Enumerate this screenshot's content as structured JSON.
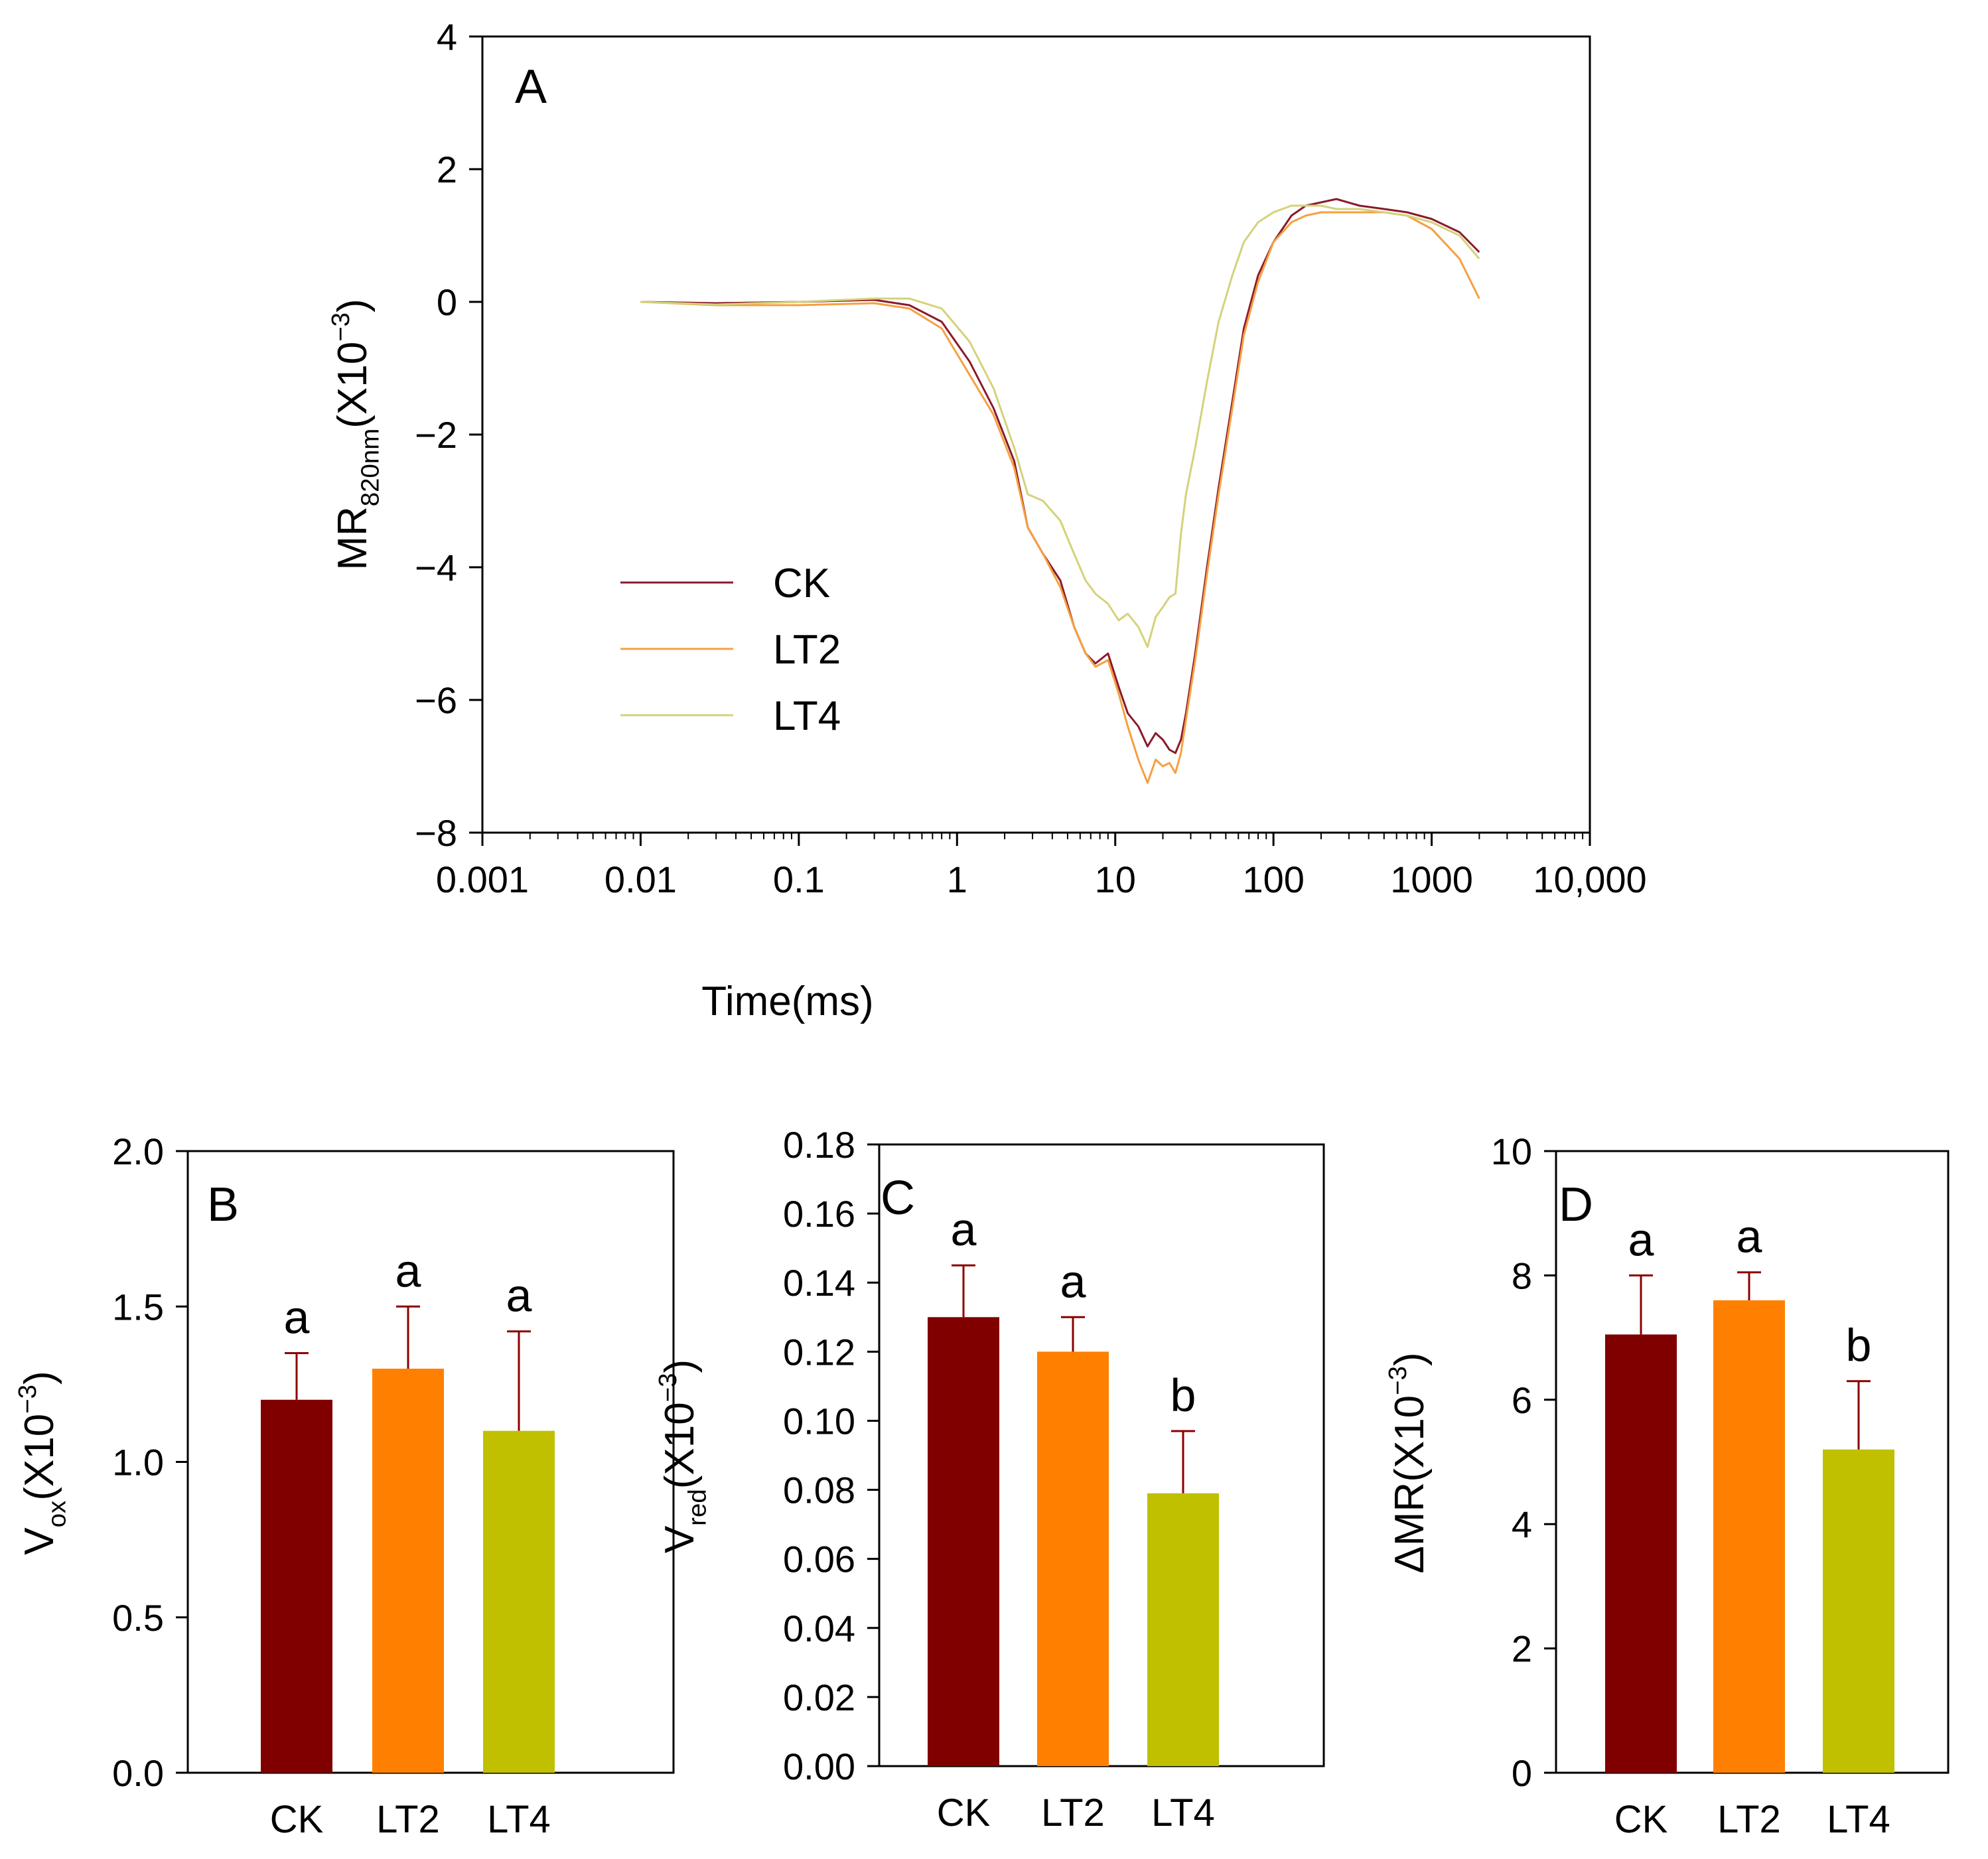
{
  "chart_data": [
    {
      "panel": "A",
      "type": "line",
      "xscale": "log",
      "xlabel": "Time(ms)",
      "ylabel": {
        "base": "MR",
        "sub": "820nm",
        "unit": "(X10",
        "exp": "−3",
        "close": ")"
      },
      "xlim": [
        0.001,
        10000
      ],
      "ylim": [
        -8,
        4
      ],
      "xticks": [
        {
          "value": 0.001,
          "label": "0.001"
        },
        {
          "value": 0.01,
          "label": "0.01"
        },
        {
          "value": 0.1,
          "label": "0.1"
        },
        {
          "value": 1,
          "label": "1"
        },
        {
          "value": 10,
          "label": "10"
        },
        {
          "value": 100,
          "label": "100"
        },
        {
          "value": 1000,
          "label": "1000"
        },
        {
          "value": 10000,
          "label": "10,000"
        }
      ],
      "yticks": [
        {
          "value": 4,
          "label": "4"
        },
        {
          "value": 2,
          "label": "2"
        },
        {
          "value": 0,
          "label": "0"
        },
        {
          "value": -2,
          "label": "−2"
        },
        {
          "value": -4,
          "label": "−4"
        },
        {
          "value": -6,
          "label": "−6"
        },
        {
          "value": -8,
          "label": "−8"
        }
      ],
      "legend_position": "lower-left",
      "series": [
        {
          "name": "CK",
          "color": "#8B1A2A",
          "points": [
            [
              0.01,
              0
            ],
            [
              0.03,
              -0.02
            ],
            [
              0.1,
              0
            ],
            [
              0.3,
              0.03
            ],
            [
              0.5,
              -0.05
            ],
            [
              0.8,
              -0.3
            ],
            [
              1.2,
              -0.9
            ],
            [
              1.7,
              -1.6
            ],
            [
              2.3,
              -2.4
            ],
            [
              2.8,
              -3.4
            ],
            [
              3.5,
              -3.8
            ],
            [
              4.5,
              -4.2
            ],
            [
              5.5,
              -4.9
            ],
            [
              6.5,
              -5.3
            ],
            [
              7.5,
              -5.45
            ],
            [
              9,
              -5.3
            ],
            [
              10.5,
              -5.8
            ],
            [
              12,
              -6.2
            ],
            [
              14,
              -6.4
            ],
            [
              16,
              -6.7
            ],
            [
              18,
              -6.5
            ],
            [
              20,
              -6.6
            ],
            [
              22,
              -6.75
            ],
            [
              24,
              -6.8
            ],
            [
              26,
              -6.6
            ],
            [
              28,
              -6.2
            ],
            [
              32,
              -5.3
            ],
            [
              38,
              -4.0
            ],
            [
              45,
              -2.8
            ],
            [
              55,
              -1.5
            ],
            [
              65,
              -0.4
            ],
            [
              80,
              0.4
            ],
            [
              100,
              0.9
            ],
            [
              130,
              1.3
            ],
            [
              160,
              1.45
            ],
            [
              200,
              1.5
            ],
            [
              250,
              1.55
            ],
            [
              350,
              1.45
            ],
            [
              500,
              1.4
            ],
            [
              700,
              1.35
            ],
            [
              1000,
              1.25
            ],
            [
              1500,
              1.05
            ],
            [
              2000,
              0.75
            ]
          ]
        },
        {
          "name": "LT2",
          "color": "#F5A040",
          "points": [
            [
              0.01,
              0
            ],
            [
              0.03,
              -0.05
            ],
            [
              0.1,
              -0.05
            ],
            [
              0.3,
              -0.02
            ],
            [
              0.5,
              -0.1
            ],
            [
              0.8,
              -0.4
            ],
            [
              1.2,
              -1.1
            ],
            [
              1.7,
              -1.7
            ],
            [
              2.3,
              -2.5
            ],
            [
              2.8,
              -3.4
            ],
            [
              3.5,
              -3.8
            ],
            [
              4.5,
              -4.3
            ],
            [
              5.5,
              -4.9
            ],
            [
              6.5,
              -5.3
            ],
            [
              7.5,
              -5.5
            ],
            [
              9,
              -5.4
            ],
            [
              10.5,
              -5.9
            ],
            [
              12,
              -6.4
            ],
            [
              14,
              -6.9
            ],
            [
              16,
              -7.25
            ],
            [
              18,
              -6.9
            ],
            [
              20,
              -7.0
            ],
            [
              22,
              -6.95
            ],
            [
              24,
              -7.1
            ],
            [
              26,
              -6.8
            ],
            [
              28,
              -6.3
            ],
            [
              32,
              -5.4
            ],
            [
              38,
              -4.1
            ],
            [
              45,
              -2.9
            ],
            [
              55,
              -1.6
            ],
            [
              65,
              -0.5
            ],
            [
              80,
              0.3
            ],
            [
              100,
              0.9
            ],
            [
              130,
              1.2
            ],
            [
              160,
              1.3
            ],
            [
              200,
              1.35
            ],
            [
              250,
              1.35
            ],
            [
              350,
              1.35
            ],
            [
              500,
              1.35
            ],
            [
              700,
              1.3
            ],
            [
              1000,
              1.1
            ],
            [
              1500,
              0.65
            ],
            [
              2000,
              0.05
            ]
          ]
        },
        {
          "name": "LT4",
          "color": "#D4D27A",
          "points": [
            [
              0.01,
              0
            ],
            [
              0.03,
              -0.04
            ],
            [
              0.1,
              0
            ],
            [
              0.3,
              0.05
            ],
            [
              0.5,
              0.05
            ],
            [
              0.8,
              -0.1
            ],
            [
              1.2,
              -0.6
            ],
            [
              1.7,
              -1.3
            ],
            [
              2.3,
              -2.2
            ],
            [
              2.8,
              -2.9
            ],
            [
              3.5,
              -3.0
            ],
            [
              4.5,
              -3.3
            ],
            [
              5.5,
              -3.8
            ],
            [
              6.5,
              -4.2
            ],
            [
              7.5,
              -4.4
            ],
            [
              9,
              -4.55
            ],
            [
              10.5,
              -4.8
            ],
            [
              12,
              -4.7
            ],
            [
              14,
              -4.9
            ],
            [
              16,
              -5.2
            ],
            [
              18,
              -4.75
            ],
            [
              20,
              -4.6
            ],
            [
              22,
              -4.45
            ],
            [
              24,
              -4.4
            ],
            [
              26,
              -3.5
            ],
            [
              28,
              -2.9
            ],
            [
              32,
              -2.2
            ],
            [
              38,
              -1.2
            ],
            [
              45,
              -0.3
            ],
            [
              55,
              0.4
            ],
            [
              65,
              0.9
            ],
            [
              80,
              1.2
            ],
            [
              100,
              1.35
            ],
            [
              130,
              1.45
            ],
            [
              160,
              1.45
            ],
            [
              200,
              1.45
            ],
            [
              250,
              1.4
            ],
            [
              350,
              1.4
            ],
            [
              500,
              1.35
            ],
            [
              700,
              1.3
            ],
            [
              1000,
              1.2
            ],
            [
              1500,
              1.0
            ],
            [
              2000,
              0.65
            ]
          ]
        }
      ]
    },
    {
      "panel": "B",
      "type": "bar",
      "categories": [
        "CK",
        "LT2",
        "LT4"
      ],
      "values": [
        1.2,
        1.3,
        1.1
      ],
      "errors": [
        0.15,
        0.2,
        0.32
      ],
      "letters": [
        "a",
        "a",
        "a"
      ],
      "colors": [
        "#800000",
        "#FF8000",
        "#C0C000"
      ],
      "ylabel": {
        "base": "V",
        "sub": "ox",
        "unit": "(X10",
        "exp": "−3",
        "close": ")"
      },
      "ylim": [
        0,
        2.0
      ],
      "yticks": [
        {
          "value": 2.0,
          "label": "2.0"
        },
        {
          "value": 1.5,
          "label": "1.5"
        },
        {
          "value": 1.0,
          "label": "1.0"
        },
        {
          "value": 0.5,
          "label": "0.5"
        },
        {
          "value": 0.0,
          "label": "0.0"
        }
      ]
    },
    {
      "panel": "C",
      "type": "bar",
      "categories": [
        "CK",
        "LT2",
        "LT4"
      ],
      "values": [
        0.13,
        0.12,
        0.079
      ],
      "errors": [
        0.015,
        0.01,
        0.018
      ],
      "letters": [
        "a",
        "a",
        "b"
      ],
      "colors": [
        "#800000",
        "#FF8000",
        "#C0C000"
      ],
      "ylabel": {
        "base": "V",
        "sub": "red",
        "unit": "(X10",
        "exp": "−3",
        "close": ")"
      },
      "ylim": [
        0,
        0.18
      ],
      "yticks": [
        {
          "value": 0.18,
          "label": "0.18"
        },
        {
          "value": 0.16,
          "label": "0.16"
        },
        {
          "value": 0.14,
          "label": "0.14"
        },
        {
          "value": 0.12,
          "label": "0.12"
        },
        {
          "value": 0.1,
          "label": "0.10"
        },
        {
          "value": 0.08,
          "label": "0.08"
        },
        {
          "value": 0.06,
          "label": "0.06"
        },
        {
          "value": 0.04,
          "label": "0.04"
        },
        {
          "value": 0.02,
          "label": "0.02"
        },
        {
          "value": 0.0,
          "label": "0.00"
        }
      ]
    },
    {
      "panel": "D",
      "type": "bar",
      "categories": [
        "CK",
        "LT2",
        "LT4"
      ],
      "values": [
        7.05,
        7.6,
        5.2
      ],
      "errors": [
        0.95,
        0.45,
        1.1
      ],
      "letters": [
        "a",
        "a",
        "b"
      ],
      "colors": [
        "#800000",
        "#FF8000",
        "#C0C000"
      ],
      "ylabel": {
        "base": "ΔMR",
        "sub": "",
        "unit": "(X10",
        "exp": "−3",
        "close": ")"
      },
      "ylim": [
        0,
        10
      ],
      "yticks": [
        {
          "value": 10,
          "label": "10"
        },
        {
          "value": 8,
          "label": "8"
        },
        {
          "value": 6,
          "label": "6"
        },
        {
          "value": 4,
          "label": "4"
        },
        {
          "value": 2,
          "label": "2"
        },
        {
          "value": 0,
          "label": "0"
        }
      ]
    }
  ]
}
